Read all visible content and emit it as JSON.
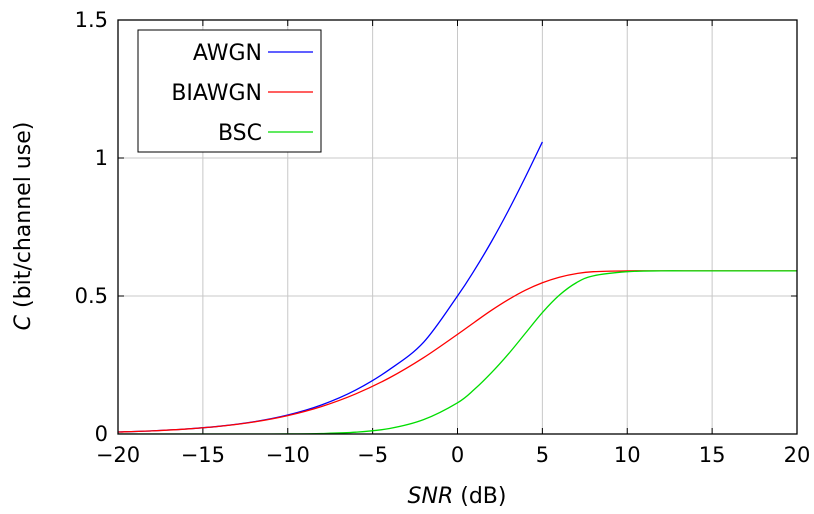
{
  "chart_data": {
    "type": "line",
    "xlabel_italic": "SNR",
    "xlabel_rest": " (dB)",
    "ylabel_italic": "C",
    "ylabel_rest": " (bit/channel use)",
    "xlim": [
      -20,
      20
    ],
    "ylim": [
      0,
      1.5
    ],
    "x_ticks": [
      -20,
      -15,
      -10,
      -5,
      0,
      5,
      10,
      15,
      20
    ],
    "x_tick_labels": [
      "−20",
      "−15",
      "−10",
      "−5",
      "0",
      "5",
      "10",
      "15",
      "20"
    ],
    "y_ticks": [
      0,
      0.5,
      1,
      1.5
    ],
    "y_tick_labels": [
      "0",
      "0.5",
      "1",
      "1.5"
    ],
    "grid": true,
    "legend_position": "top-left",
    "x": [
      -20,
      -18,
      -16,
      -14,
      -12,
      -10,
      -8,
      -6,
      -4,
      -2,
      0,
      1,
      2,
      3,
      4,
      5,
      6,
      7,
      8,
      10,
      12,
      14,
      16,
      18,
      20
    ],
    "series": [
      {
        "name": "AWGN",
        "color": "#0000ff",
        "values": [
          0.0072,
          0.0114,
          0.018,
          0.0283,
          0.0443,
          0.0688,
          0.1056,
          0.1592,
          0.2339,
          0.3322,
          0.5,
          0.5939,
          0.697,
          0.8098,
          0.9311,
          1.0582,
          null,
          null,
          null,
          null,
          null,
          null,
          null,
          null,
          null
        ]
      },
      {
        "name": "BIAWGN",
        "color": "#ff0000",
        "values": [
          0.0072,
          0.0114,
          0.0179,
          0.028,
          0.0435,
          0.0667,
          0.0998,
          0.1452,
          0.2038,
          0.2765,
          0.361,
          0.405,
          0.448,
          0.487,
          0.521,
          0.548,
          0.568,
          0.581,
          0.588,
          0.591,
          0.591,
          0.591,
          0.591,
          0.591,
          0.591
        ]
      },
      {
        "name": "BSC",
        "color": "#00dd00",
        "values": [
          0.0,
          0.0,
          0.0,
          0.0,
          0.0,
          0.0004,
          0.0018,
          0.0065,
          0.02,
          0.052,
          0.113,
          0.162,
          0.222,
          0.29,
          0.365,
          0.44,
          0.503,
          0.548,
          0.573,
          0.588,
          0.591,
          0.591,
          0.591,
          0.591,
          0.591
        ]
      }
    ]
  }
}
